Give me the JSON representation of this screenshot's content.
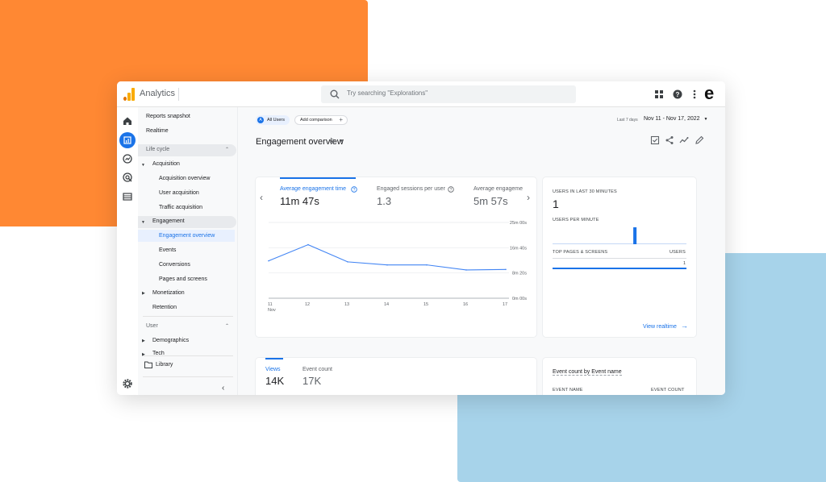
{
  "app": {
    "title": "Analytics",
    "brand_letter": "e",
    "colors": {
      "accent": "#1a73e8",
      "logo": "#f9ab00",
      "deco_orange": "#ff8833",
      "deco_blue": "#a7d3ea"
    }
  },
  "search": {
    "placeholder": "Try searching \"Explorations\""
  },
  "toolbar_icons": [
    "apps-grid-icon",
    "help-icon",
    "more-vert-icon"
  ],
  "sidebar": {
    "reports_snapshot": "Reports snapshot",
    "realtime": "Realtime",
    "lifecycle_section": "Life cycle",
    "acquisition": "Acquisition",
    "acquisition_overview": "Acquisition overview",
    "user_acquisition": "User acquisition",
    "traffic_acquisition": "Traffic acquisition",
    "engagement": "Engagement",
    "engagement_overview": "Engagement overview",
    "events": "Events",
    "conversions": "Conversions",
    "pages_and_screens": "Pages and screens",
    "monetization": "Monetization",
    "retention": "Retention",
    "user_section": "User",
    "demographics": "Demographics",
    "tech": "Tech",
    "library": "Library"
  },
  "header": {
    "all_users": "All Users",
    "all_users_badge": "A",
    "add_comparison": "Add comparison",
    "date_label": "Last 7 days",
    "date_range": "Nov 11 - Nov 17, 2022",
    "page_title": "Engagement overview"
  },
  "metrics": [
    {
      "label": "Average engagement time",
      "value": "11m 47s"
    },
    {
      "label": "Engaged sessions per user",
      "value": "1.3"
    },
    {
      "label": "Average engageme",
      "value": "5m 57s"
    }
  ],
  "chart_data": {
    "type": "line",
    "x": [
      "11",
      "12",
      "13",
      "14",
      "15",
      "16",
      "17"
    ],
    "x_sublabel": "Nov",
    "series": [
      {
        "values": [
          740,
          1060,
          720,
          660,
          660,
          560,
          570
        ]
      }
    ],
    "y_ticks": [
      "25m 00s",
      "16m 40s",
      "8m 20s",
      "0m 00s"
    ],
    "ylim": [
      0,
      1500
    ],
    "grid": true
  },
  "realtime": {
    "users_label": "USERS IN LAST 30 MINUTES",
    "users_value": "1",
    "per_minute_label": "USERS PER MINUTE",
    "per_minute_values": [
      0,
      0,
      0,
      0,
      0,
      0,
      0,
      0,
      0,
      0,
      0,
      0,
      0,
      0,
      0,
      0,
      0,
      0,
      1,
      0,
      0,
      0,
      0,
      0,
      0,
      0,
      0,
      0,
      0,
      0
    ],
    "top_pages_label": "TOP PAGES & SCREENS",
    "users_col": "USERS",
    "top_pages_count": "1",
    "view_link": "View realtime"
  },
  "views_card": {
    "views_label": "Views",
    "views_value": "14K",
    "events_label": "Event count",
    "events_value": "17K"
  },
  "event_card": {
    "title": "Event count by Event name",
    "col1": "EVENT NAME",
    "col2": "EVENT COUNT"
  }
}
